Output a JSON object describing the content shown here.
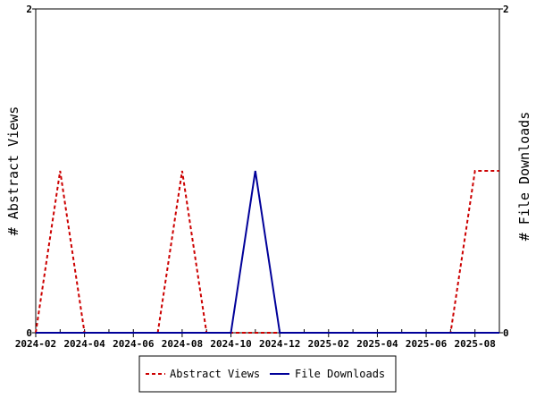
{
  "chart_data": {
    "type": "line",
    "xlabels": [
      "2024-02",
      "2024-04",
      "2024-06",
      "2024-08",
      "2024-10",
      "2024-12",
      "2025-02",
      "2025-04",
      "2025-06",
      "2025-08"
    ],
    "x_range": [
      "2024-02",
      "2025-09"
    ],
    "ylabel_left": "# Abstract Views",
    "ylabel_right": "# File Downloads",
    "ylim_left": [
      0,
      2
    ],
    "ylim_right": [
      0,
      2
    ],
    "yticks_left": [
      "0",
      "2"
    ],
    "yticks_right": [
      "0",
      "2"
    ],
    "grid": false,
    "legend_position": "bottom",
    "series": [
      {
        "name": "Abstract Views",
        "axis": "left",
        "color": "#cc0000",
        "style": "dashed",
        "points": [
          [
            "2024-02",
            0
          ],
          [
            "2024-03",
            1
          ],
          [
            "2024-04",
            0
          ],
          [
            "2024-07",
            0
          ],
          [
            "2024-08",
            1
          ],
          [
            "2024-09",
            0
          ],
          [
            "2025-07",
            0
          ],
          [
            "2025-08",
            1
          ],
          [
            "2025-09",
            1
          ]
        ]
      },
      {
        "name": "File Downloads",
        "axis": "right",
        "color": "#000099",
        "style": "solid",
        "points": [
          [
            "2024-02",
            0
          ],
          [
            "2024-10",
            0
          ],
          [
            "2024-11",
            1
          ],
          [
            "2024-12",
            0
          ],
          [
            "2025-09",
            0
          ]
        ]
      }
    ]
  }
}
